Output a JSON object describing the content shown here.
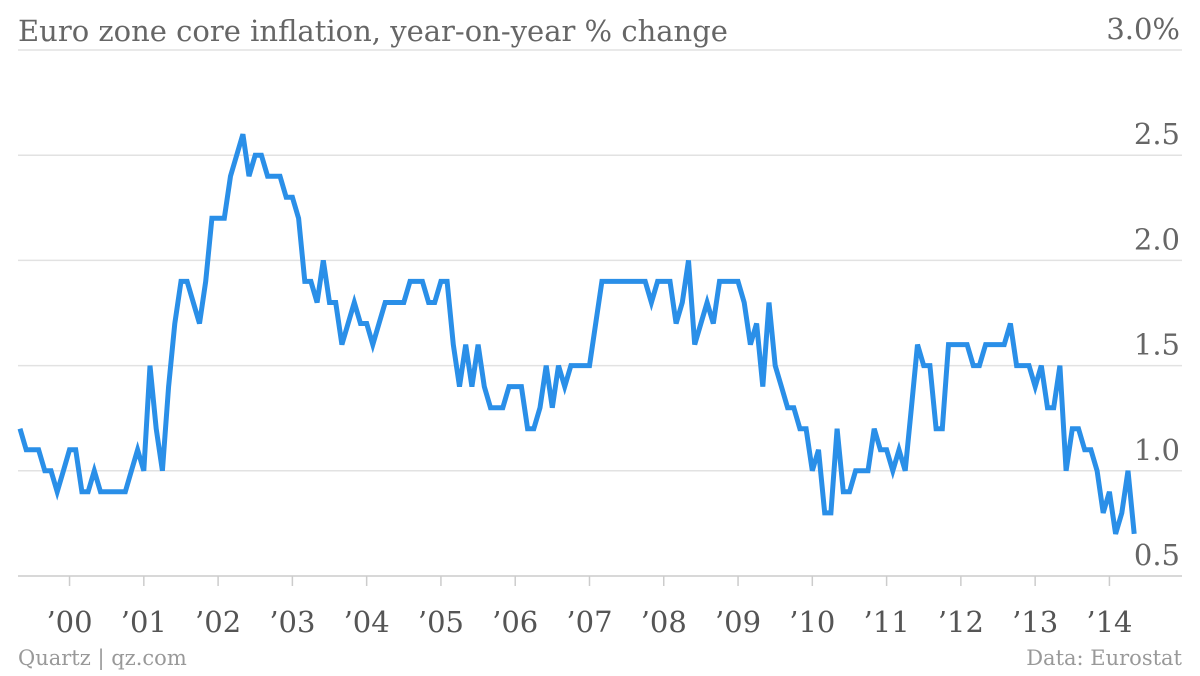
{
  "chart_data": {
    "type": "line",
    "title": "Euro zone core inflation, year-on-year % change",
    "xlabel": "",
    "ylabel": "",
    "ylim": [
      0.5,
      3.0
    ],
    "yticks": [
      {
        "value": 3.0,
        "label": "3.0%"
      },
      {
        "value": 2.5,
        "label": "2.5"
      },
      {
        "value": 2.0,
        "label": "2.0"
      },
      {
        "value": 1.5,
        "label": "1.5"
      },
      {
        "value": 1.0,
        "label": "1.0"
      },
      {
        "value": 0.5,
        "label": "0.5"
      }
    ],
    "xlim": [
      1999.333,
      2014.25
    ],
    "xticks": [
      {
        "value": 2000,
        "label": "’00"
      },
      {
        "value": 2001,
        "label": "’01"
      },
      {
        "value": 2002,
        "label": "’02"
      },
      {
        "value": 2003,
        "label": "’03"
      },
      {
        "value": 2004,
        "label": "’04"
      },
      {
        "value": 2005,
        "label": "’05"
      },
      {
        "value": 2006,
        "label": "’06"
      },
      {
        "value": 2007,
        "label": "’07"
      },
      {
        "value": 2008,
        "label": "’08"
      },
      {
        "value": 2009,
        "label": "’09"
      },
      {
        "value": 2010,
        "label": "’10"
      },
      {
        "value": 2011,
        "label": "’11"
      },
      {
        "value": 2012,
        "label": "’12"
      },
      {
        "value": 2013,
        "label": "’13"
      },
      {
        "value": 2014,
        "label": "’14"
      }
    ],
    "grid": true,
    "series": [
      {
        "color": "#2a8fe8",
        "start_year": 1999,
        "start_month": 5,
        "values": [
          1.2,
          1.1,
          1.1,
          1.1,
          1.0,
          1.0,
          0.9,
          1.0,
          1.1,
          1.1,
          0.9,
          0.9,
          1.0,
          0.9,
          0.9,
          0.9,
          0.9,
          0.9,
          1.0,
          1.1,
          1.0,
          1.5,
          1.2,
          1.0,
          1.4,
          1.7,
          1.9,
          1.9,
          1.8,
          1.7,
          1.9,
          2.2,
          2.2,
          2.2,
          2.4,
          2.5,
          2.6,
          2.4,
          2.5,
          2.5,
          2.4,
          2.4,
          2.4,
          2.3,
          2.3,
          2.2,
          1.9,
          1.9,
          1.8,
          2.0,
          1.8,
          1.8,
          1.6,
          1.7,
          1.8,
          1.7,
          1.7,
          1.6,
          1.7,
          1.8,
          1.8,
          1.8,
          1.8,
          1.9,
          1.9,
          1.9,
          1.8,
          1.8,
          1.9,
          1.9,
          1.6,
          1.4,
          1.6,
          1.4,
          1.6,
          1.4,
          1.3,
          1.3,
          1.3,
          1.4,
          1.4,
          1.4,
          1.2,
          1.2,
          1.3,
          1.5,
          1.3,
          1.5,
          1.4,
          1.5,
          1.5,
          1.5,
          1.5,
          1.7,
          1.9,
          1.9,
          1.9,
          1.9,
          1.9,
          1.9,
          1.9,
          1.9,
          1.8,
          1.9,
          1.9,
          1.9,
          1.7,
          1.8,
          2.0,
          1.6,
          1.7,
          1.8,
          1.7,
          1.9,
          1.9,
          1.9,
          1.9,
          1.8,
          1.6,
          1.7,
          1.4,
          1.8,
          1.5,
          1.4,
          1.3,
          1.3,
          1.2,
          1.2,
          1.0,
          1.1,
          0.8,
          0.8,
          1.2,
          0.9,
          0.9,
          1.0,
          1.0,
          1.0,
          1.2,
          1.1,
          1.1,
          1.0,
          1.1,
          1.0,
          1.3,
          1.6,
          1.5,
          1.5,
          1.2,
          1.2,
          1.6,
          1.6,
          1.6,
          1.6,
          1.5,
          1.5,
          1.6,
          1.6,
          1.6,
          1.6,
          1.7,
          1.5,
          1.5,
          1.5,
          1.4,
          1.5,
          1.3,
          1.3,
          1.5,
          1.0,
          1.2,
          1.2,
          1.1,
          1.1,
          1.0,
          0.8,
          0.9,
          0.7,
          0.8,
          1.0,
          0.7
        ]
      }
    ]
  },
  "footer": {
    "source_left": "Quartz | qz.com",
    "source_right": "Data: Eurostat"
  }
}
